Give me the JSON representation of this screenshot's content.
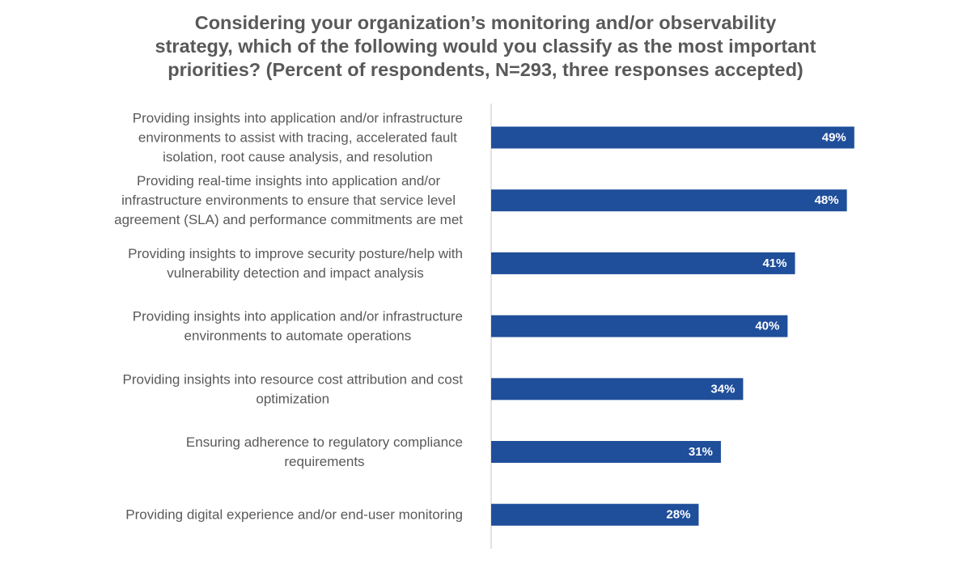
{
  "chart_data": {
    "type": "bar",
    "orientation": "horizontal",
    "title": "Considering your organization’s monitoring and/or observability\nstrategy, which of the following would you classify as the most important\npriorities? (Percent of respondents, N=293, three responses accepted)",
    "categories": [
      [
        "Providing insights into application and/or infrastructure",
        "environments to assist with tracing, accelerated fault",
        "isolation, root cause analysis, and resolution"
      ],
      [
        "Providing real-time insights into application and/or",
        "infrastructure environments to ensure that service level",
        "agreement (SLA) and performance commitments are met"
      ],
      [
        "Providing insights to improve security posture/help with",
        "vulnerability detection and impact analysis"
      ],
      [
        "Providing insights into application and/or infrastructure",
        "environments to automate operations"
      ],
      [
        "Providing insights into resource cost attribution and cost",
        "optimization"
      ],
      [
        "Ensuring adherence to regulatory compliance",
        "requirements"
      ],
      [
        "Providing digital experience and/or end-user monitoring"
      ]
    ],
    "values": [
      49,
      48,
      41,
      40,
      34,
      31,
      28
    ],
    "data_labels": [
      "49%",
      "48%",
      "41%",
      "40%",
      "34%",
      "31%",
      "28%"
    ],
    "unit": "%",
    "xlim": [
      0,
      63
    ],
    "grid": false,
    "legend": "none",
    "bar_color": "#1F4E9A",
    "axis_color": "#D9D9D9",
    "text_color": "#595959"
  }
}
